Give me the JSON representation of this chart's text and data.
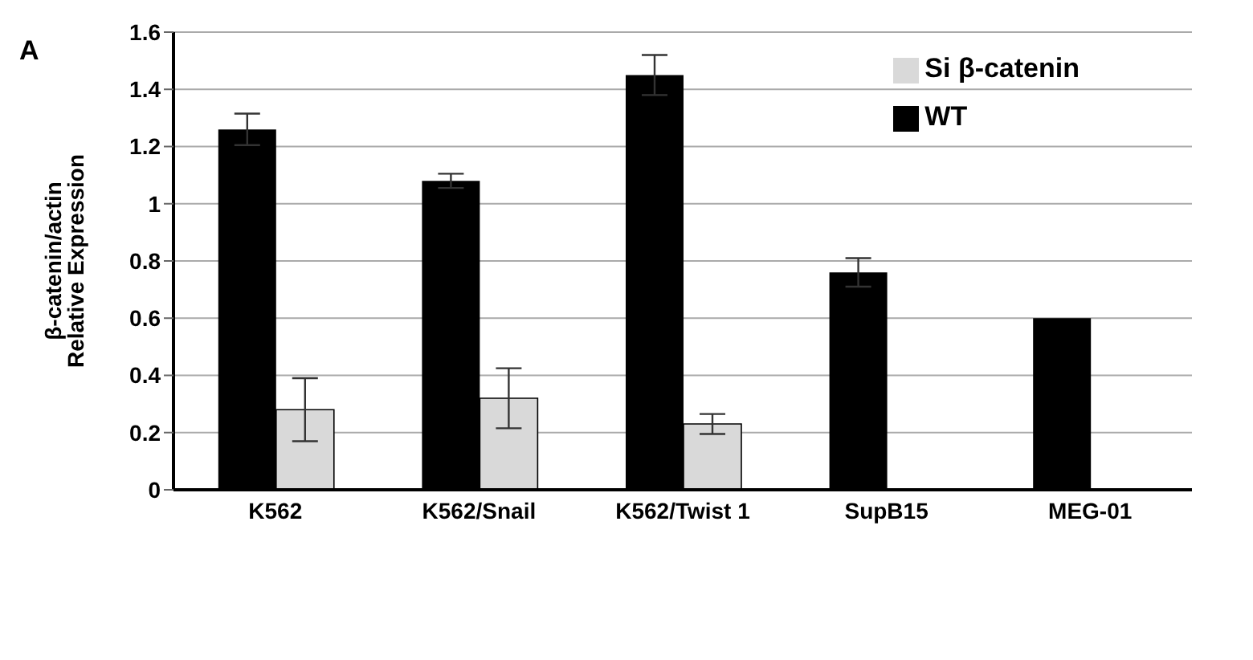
{
  "chart_data": {
    "type": "bar",
    "ylabel": "β-catenin/actin Relative Expression",
    "annotations": [
      "A"
    ],
    "categories": [
      "K562",
      "K562/Snail",
      "K562/Twist 1",
      "SupB15",
      "MEG-01"
    ],
    "series": [
      {
        "name": "WT",
        "color": "#000000",
        "values": [
          1.26,
          1.08,
          1.45,
          0.76,
          0.6
        ],
        "errors": [
          0.055,
          0.025,
          0.07,
          0.05,
          0
        ]
      },
      {
        "name": "Si β-catenin",
        "color": "#d9d9d9",
        "values": [
          0.28,
          0.32,
          0.23,
          null,
          null
        ],
        "errors": [
          0.11,
          0.105,
          0.035,
          null,
          null
        ]
      }
    ],
    "ylim": [
      0,
      1.6
    ],
    "yticks": [
      0,
      0.2,
      0.4,
      0.6,
      0.8,
      1,
      1.2,
      1.4,
      1.6
    ],
    "grid": "y",
    "legend": "top right"
  }
}
